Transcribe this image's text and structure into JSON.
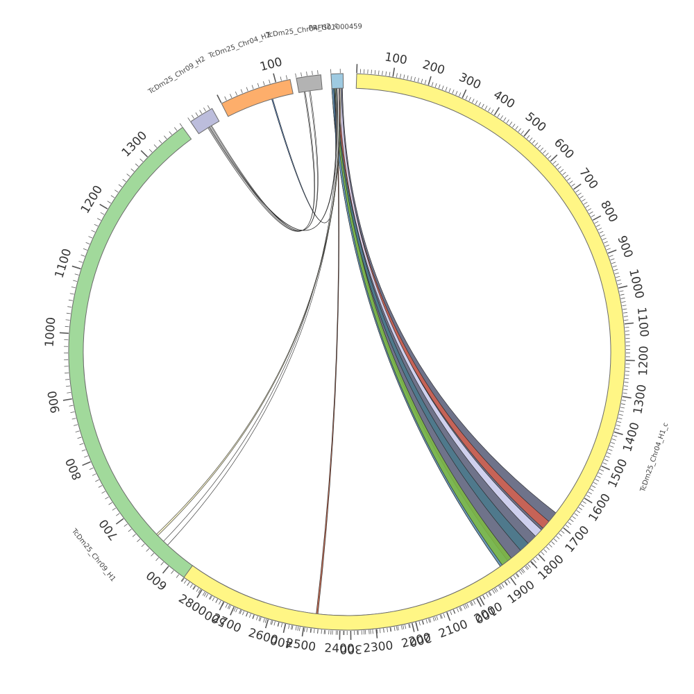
{
  "diagram": {
    "type": "circos",
    "segments": [
      {
        "id": "tig",
        "name": "PRFG01000459",
        "length": 13,
        "color": "#9ecae1",
        "tick_step": 10,
        "label_step": 0
      },
      {
        "id": "h2c",
        "name": "TcDm25_Chr04_H2_c",
        "length": 45,
        "color": "#b3b3b3",
        "tick_step": 10,
        "label_step": 0
      },
      {
        "id": "h2",
        "name": "TcDm25_Chr04_H2",
        "length": 125,
        "color": "#fdae6b",
        "tick_step": 10,
        "label_step": 100
      },
      {
        "id": "c9h2",
        "name": "TcDm25_Chr09_H2",
        "length": 55,
        "color": "#bcbddc",
        "tick_step": 10,
        "label_step": 0
      },
      {
        "id": "c9h1",
        "name": "TcDm25_Chr09_H1",
        "length": 1370,
        "color": "#a1d99b",
        "tick_step": 10,
        "label_step": 100
      },
      {
        "id": "h1c",
        "name": "TcDm25_Chr04_H1_c",
        "length": 2860,
        "color": "#fff685",
        "tick_step": 10,
        "label_step": 100
      }
    ],
    "links": [
      {
        "from": "tig",
        "f0": 0,
        "f1": 12,
        "to": "h1c",
        "t0": 1680,
        "t1": 1905,
        "color": "#565a76"
      },
      {
        "from": "tig",
        "f0": 0,
        "f1": 6,
        "to": "h1c",
        "t0": 1878,
        "t1": 1905,
        "color": "#6aa0c0"
      },
      {
        "from": "tig",
        "f0": 3,
        "f1": 8,
        "to": "h1c",
        "t0": 1865,
        "t1": 1898,
        "color": "#7fbc41"
      },
      {
        "from": "tig",
        "f0": 5,
        "f1": 9,
        "to": "h1c",
        "t0": 1800,
        "t1": 1830,
        "color": "#4a7a8c"
      },
      {
        "from": "tig",
        "f0": 6,
        "f1": 10,
        "to": "h1c",
        "t0": 1712,
        "t1": 1738,
        "color": "#d6604d"
      },
      {
        "from": "tig",
        "f0": 8,
        "f1": 11,
        "to": "h1c",
        "t0": 1745,
        "t1": 1770,
        "color": "#e0e0ff"
      },
      {
        "from": "tig",
        "f0": 4,
        "f1": 5,
        "to": "h1c",
        "t0": 2465,
        "t1": 2470,
        "color": "#b2543a"
      },
      {
        "from": "h2c",
        "f0": 10,
        "f1": 12,
        "to": "c9h2",
        "t0": 25,
        "t1": 30,
        "color": "#d0d0d0"
      },
      {
        "from": "h2",
        "f0": 85,
        "f1": 87,
        "to": "tig",
        "t0": 2,
        "t1": 3,
        "color": "#4575b4"
      },
      {
        "from": "c9h2",
        "f0": 28,
        "f1": 30,
        "to": "tig",
        "t0": 4,
        "t1": 5,
        "color": "#ffffff"
      },
      {
        "from": "c9h2",
        "f0": 33,
        "f1": 35,
        "to": "h2c",
        "t0": 20,
        "t1": 22,
        "color": "#ffffff"
      },
      {
        "from": "c9h1",
        "f0": 623,
        "f1": 632,
        "to": "tig",
        "t0": 6,
        "t1": 8,
        "color": "#ffffff"
      },
      {
        "from": "c9h1",
        "f0": 645,
        "f1": 648,
        "to": "tig",
        "t0": 9,
        "t1": 10,
        "color": "#fffacd"
      }
    ]
  }
}
